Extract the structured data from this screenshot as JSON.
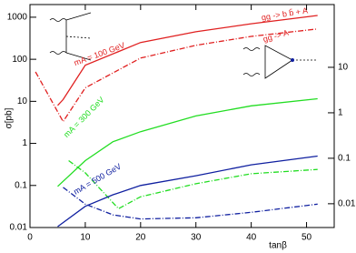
{
  "chart_data": {
    "type": "line",
    "y_label": "σ[pb]",
    "x_label": "tanβ",
    "xlim": [
      0,
      55
    ],
    "xticks": [
      0,
      10,
      20,
      30,
      40,
      50
    ],
    "ylim": [
      0.01,
      2000
    ],
    "yticks": [
      0.01,
      0.1,
      1,
      10,
      100,
      1000
    ],
    "log_y": true,
    "y2lim": [
      0.003,
      240
    ],
    "y2ticks": [
      0.01,
      0.1,
      1,
      10
    ],
    "log_y2": true,
    "series": [
      {
        "color": "#e02020",
        "dash": false,
        "x": [
          5,
          6,
          10,
          20,
          30,
          40,
          52
        ],
        "values": [
          8,
          11,
          72,
          250,
          450,
          700,
          1100
        ]
      },
      {
        "color": "#e02020",
        "dash": true,
        "x": [
          1,
          6,
          10,
          20,
          30,
          40,
          52
        ],
        "values": [
          50,
          3.3,
          21,
          107,
          215,
          350,
          525
        ]
      },
      {
        "color": "#22dd22",
        "dash": false,
        "x": [
          5,
          10,
          15,
          20,
          30,
          40,
          52
        ],
        "values": [
          0.095,
          0.39,
          1.1,
          1.9,
          4.5,
          7.8,
          11.5
        ]
      },
      {
        "color": "#22dd22",
        "dash": true,
        "x": [
          7,
          10,
          16,
          20,
          30,
          40,
          52
        ],
        "values": [
          0.39,
          0.2,
          0.028,
          0.054,
          0.11,
          0.19,
          0.24
        ]
      },
      {
        "color": "#1020a0",
        "dash": false,
        "x": [
          5,
          10,
          15,
          20,
          30,
          40,
          52
        ],
        "values": [
          0.0105,
          0.032,
          0.06,
          0.1,
          0.17,
          0.31,
          0.5
        ]
      },
      {
        "color": "#1020a0",
        "dash": true,
        "x": [
          6,
          10,
          15,
          20,
          30,
          40,
          52
        ],
        "values": [
          0.09,
          0.036,
          0.02,
          0.016,
          0.017,
          0.023,
          0.036
        ]
      }
    ],
    "annotations": [
      {
        "text": "mA = 100 GeV",
        "color": "#e02020"
      },
      {
        "text": "gg -> b b̄ + A",
        "color": "#e02020"
      },
      {
        "text": "gg -> A",
        "color": "#e02020"
      },
      {
        "text": "mA = 300 GeV",
        "color": "#22dd22"
      },
      {
        "text": "mA = 500 GeV",
        "color": "#1020a0"
      }
    ]
  }
}
